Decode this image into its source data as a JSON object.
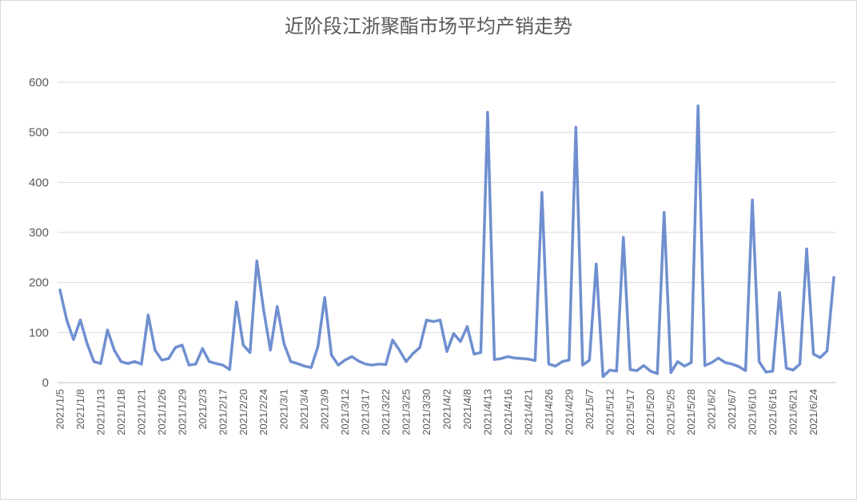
{
  "chart_data": {
    "type": "line",
    "title": "近阶段江浙聚酯市场平均产销走势",
    "xlabel": "",
    "ylabel": "",
    "ylim": [
      0,
      600
    ],
    "yticks": [
      0,
      100,
      200,
      300,
      400,
      500,
      600
    ],
    "grid": true,
    "legend": "none",
    "colors": {
      "series": "#6f8fd0",
      "grid": "#d9d9d9",
      "text": "#595959"
    },
    "x_tick_labels": [
      "2021/1/5",
      "2021/1/8",
      "2021/1/13",
      "2021/1/18",
      "2021/1/21",
      "2021/1/26",
      "2021/1/29",
      "2021/2/3",
      "2021/2/17",
      "2021/2/20",
      "2021/2/24",
      "2021/3/1",
      "2021/3/4",
      "2021/3/9",
      "2021/3/12",
      "2021/3/17",
      "2021/3/22",
      "2021/3/25",
      "2021/3/30",
      "2021/4/2",
      "2021/4/8",
      "2021/4/13",
      "2021/4/16",
      "2021/4/21",
      "2021/4/26",
      "2021/4/29",
      "2021/5/7",
      "2021/5/12",
      "2021/5/17",
      "2021/5/20",
      "2021/5/25",
      "2021/5/28",
      "2021/6/2",
      "2021/6/7",
      "2021/6/10",
      "2021/6/16",
      "2021/6/21",
      "2021/6/24"
    ],
    "series": [
      {
        "values": [
          185,
          125,
          86,
          125,
          78,
          42,
          38,
          105,
          65,
          42,
          38,
          42,
          37,
          135,
          65,
          45,
          48,
          70,
          75,
          35,
          37,
          68,
          42,
          38,
          35,
          26,
          161,
          75,
          60,
          243,
          145,
          65,
          152,
          78,
          42,
          38,
          33,
          30,
          72,
          170,
          55,
          35,
          45,
          52,
          43,
          37,
          35,
          37,
          36,
          85,
          65,
          42,
          58,
          70,
          125,
          122,
          125,
          62,
          98,
          82,
          112,
          57,
          60,
          540,
          46,
          48,
          52,
          49,
          48,
          47,
          44,
          380,
          37,
          33,
          42,
          45,
          510,
          35,
          45,
          237,
          12,
          25,
          23,
          290,
          26,
          24,
          34,
          23,
          18,
          340,
          20,
          42,
          33,
          40,
          553,
          34,
          40,
          49,
          40,
          37,
          32,
          24,
          365,
          42,
          21,
          23,
          180,
          29,
          25,
          37,
          267,
          57,
          50,
          63,
          210
        ]
      }
    ]
  }
}
